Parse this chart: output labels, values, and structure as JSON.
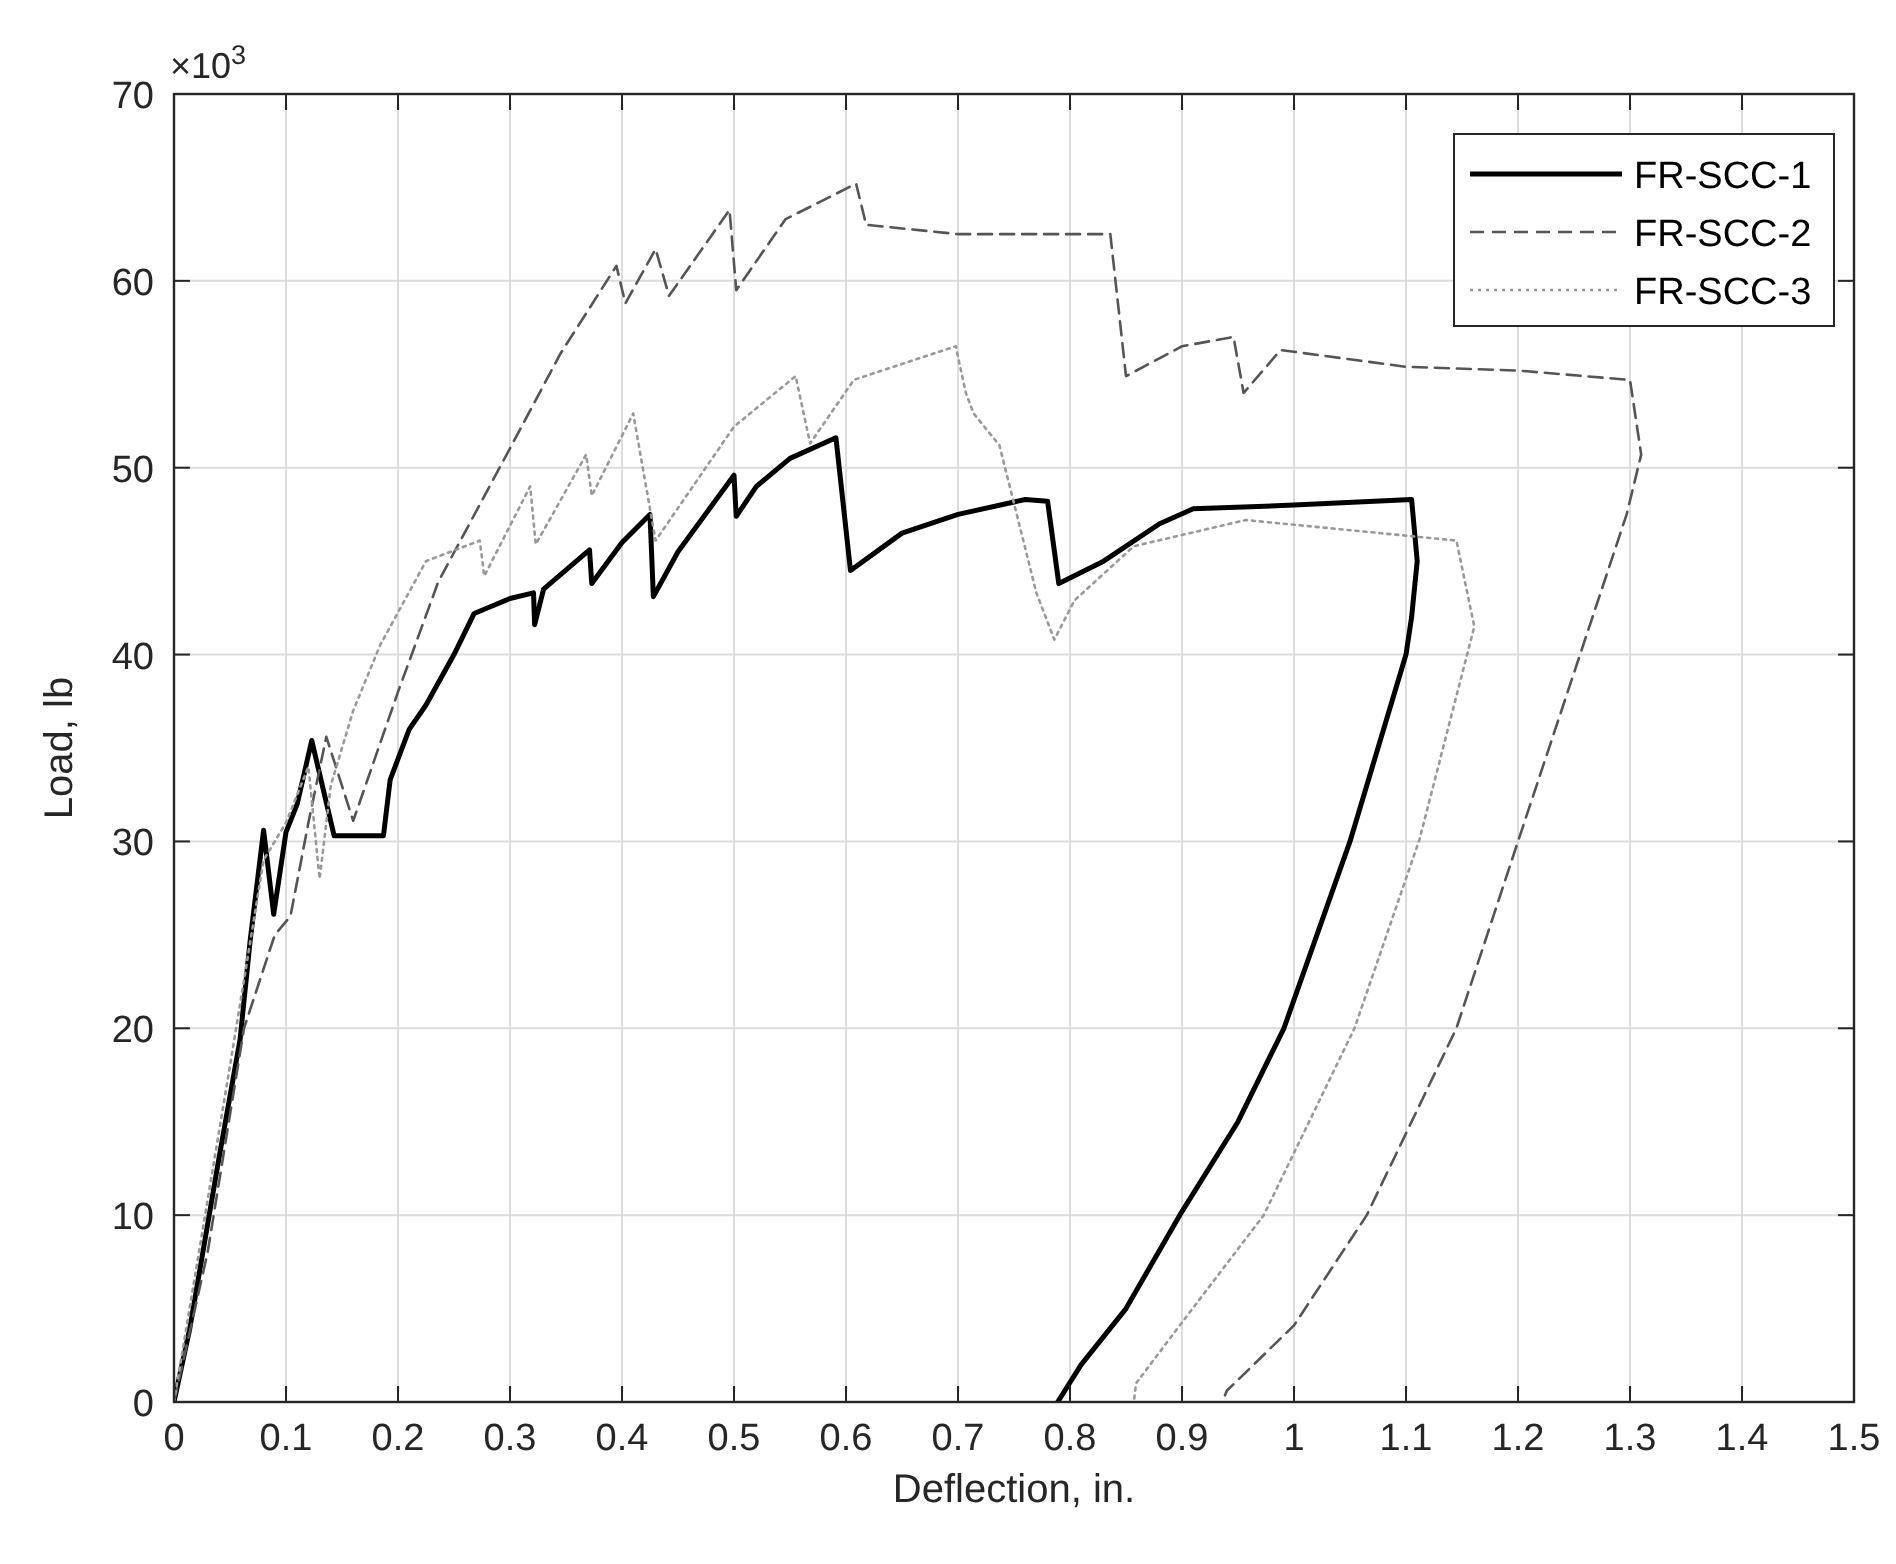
{
  "chart_data": {
    "type": "line",
    "xlabel": "Deflection, in.",
    "ylabel": "Load, lb",
    "annotations": [
      "×10$^{3}$"
    ],
    "xlim": [
      0,
      1.5
    ],
    "xticks": [
      0,
      0.1,
      0.2,
      0.3,
      0.4,
      0.5,
      0.6,
      0.7,
      0.8,
      0.9,
      1,
      1.1,
      1.2,
      1.3,
      1.4,
      1.5
    ],
    "ylim": [
      0,
      70
    ],
    "yticks": [
      0,
      10,
      20,
      30,
      40,
      50,
      60,
      70
    ],
    "grid": true,
    "legend": "top right",
    "marker": "none",
    "series": [
      {
        "name": "FR-SCC-1",
        "color": "#000000",
        "line_style": "solid",
        "x": [
          0,
          0.014,
          0.04,
          0.059,
          0.068,
          0.08,
          0.089,
          0.1,
          0.11,
          0.123,
          0.143,
          0.187,
          0.193,
          0.21,
          0.225,
          0.25,
          0.268,
          0.3,
          0.321,
          0.322,
          0.33,
          0.371,
          0.373,
          0.4,
          0.425,
          0.428,
          0.45,
          0.5,
          0.502,
          0.52,
          0.55,
          0.591,
          0.604,
          0.65,
          0.7,
          0.76,
          0.78,
          0.79,
          0.83,
          0.88,
          0.91,
          1.0,
          1.105,
          1.11,
          1.105,
          1.1,
          1.05,
          0.991,
          0.95,
          0.898,
          0.85,
          0.81,
          0.789
        ],
        "values": [
          0,
          3.9,
          13,
          19.4,
          24.7,
          30.6,
          26.1,
          30.5,
          32,
          35.4,
          30.3,
          30.3,
          33.3,
          36,
          37.3,
          40,
          42.2,
          43,
          43.3,
          41.6,
          43.5,
          45.6,
          43.8,
          46,
          47.5,
          43.1,
          45.5,
          49.6,
          47.4,
          49,
          50.5,
          51.6,
          44.5,
          46.5,
          47.5,
          48.3,
          48.2,
          43.8,
          45,
          47,
          47.8,
          48,
          48.3,
          45,
          42,
          40,
          30,
          20,
          15,
          10,
          5,
          2,
          0
        ]
      },
      {
        "name": "FR-SCC-2",
        "color": "#555555",
        "line_style": "dashed",
        "x": [
          0,
          0.03,
          0.0625,
          0.09,
          0.104,
          0.12,
          0.136,
          0.16,
          0.2,
          0.236,
          0.297,
          0.345,
          0.395,
          0.403,
          0.43,
          0.442,
          0.496,
          0.502,
          0.546,
          0.609,
          0.618,
          0.7,
          0.836,
          0.85,
          0.9,
          0.946,
          0.955,
          0.988,
          1.1,
          1.2,
          1.3,
          1.31,
          1.297,
          1.2,
          1.145,
          1.065,
          1.0,
          0.94,
          0.936
        ],
        "values": [
          0,
          8,
          20,
          25,
          26,
          31,
          35.6,
          31.1,
          38,
          43.9,
          50.7,
          56.1,
          60.8,
          58.8,
          61.7,
          59.2,
          63.8,
          59.5,
          63.3,
          65.2,
          63,
          62.5,
          62.5,
          54.9,
          56.5,
          57,
          54,
          56.3,
          55.4,
          55.2,
          54.7,
          50.7,
          47.5,
          30,
          20,
          10,
          4.1,
          0.6,
          0
        ]
      },
      {
        "name": "FR-SCC-3",
        "color": "#999999",
        "line_style": "dotted",
        "x": [
          0,
          0.05,
          0.08,
          0.1,
          0.12,
          0.13,
          0.14,
          0.16,
          0.184,
          0.225,
          0.273,
          0.277,
          0.318,
          0.323,
          0.368,
          0.373,
          0.41,
          0.43,
          0.5,
          0.555,
          0.568,
          0.607,
          0.698,
          0.707,
          0.714,
          0.737,
          0.77,
          0.786,
          0.804,
          0.857,
          0.957,
          1.145,
          1.161,
          1.112,
          1.054,
          0.973,
          0.898,
          0.859,
          0.857
        ],
        "values": [
          0,
          18,
          29,
          31,
          34,
          28,
          33,
          37,
          40.5,
          45,
          46.1,
          44.2,
          49,
          45.9,
          50.7,
          48.5,
          52.9,
          46.1,
          52.2,
          54.9,
          51.3,
          54.7,
          56.5,
          54,
          52.9,
          51.2,
          43.3,
          40.8,
          42.9,
          45.8,
          47.2,
          46.1,
          41.5,
          30.1,
          20,
          10,
          4.1,
          1,
          0
        ]
      }
    ]
  }
}
